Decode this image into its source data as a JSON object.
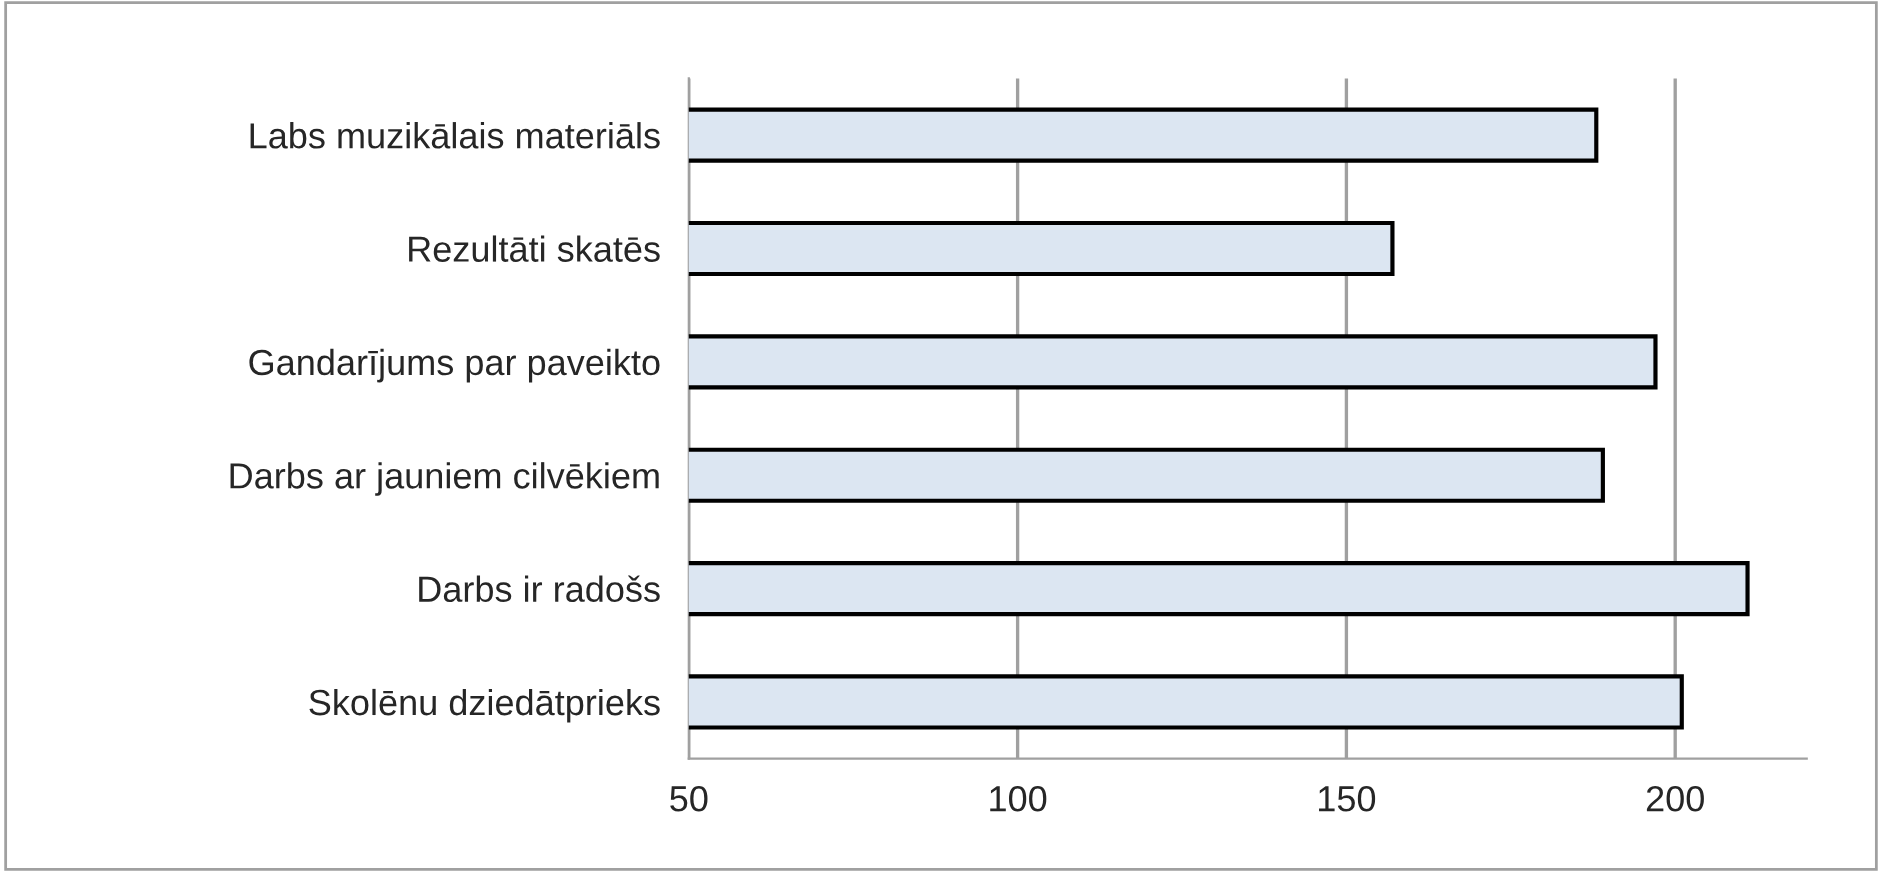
{
  "chart_data": {
    "type": "bar",
    "orientation": "horizontal",
    "categories": [
      "Labs muzikālais materiāls",
      "Rezultāti skatēs",
      "Gandarījums par paveikto",
      "Darbs ar jauniem cilvēkiem",
      "Darbs ir radošs",
      "Skolēnu dziedātprieks"
    ],
    "values": [
      188,
      157,
      197,
      189,
      211,
      201
    ],
    "color": "#dce6f2",
    "xlim": [
      50,
      220
    ],
    "xticks": [
      50,
      100,
      150,
      200
    ],
    "grid": "x",
    "legend": false
  }
}
